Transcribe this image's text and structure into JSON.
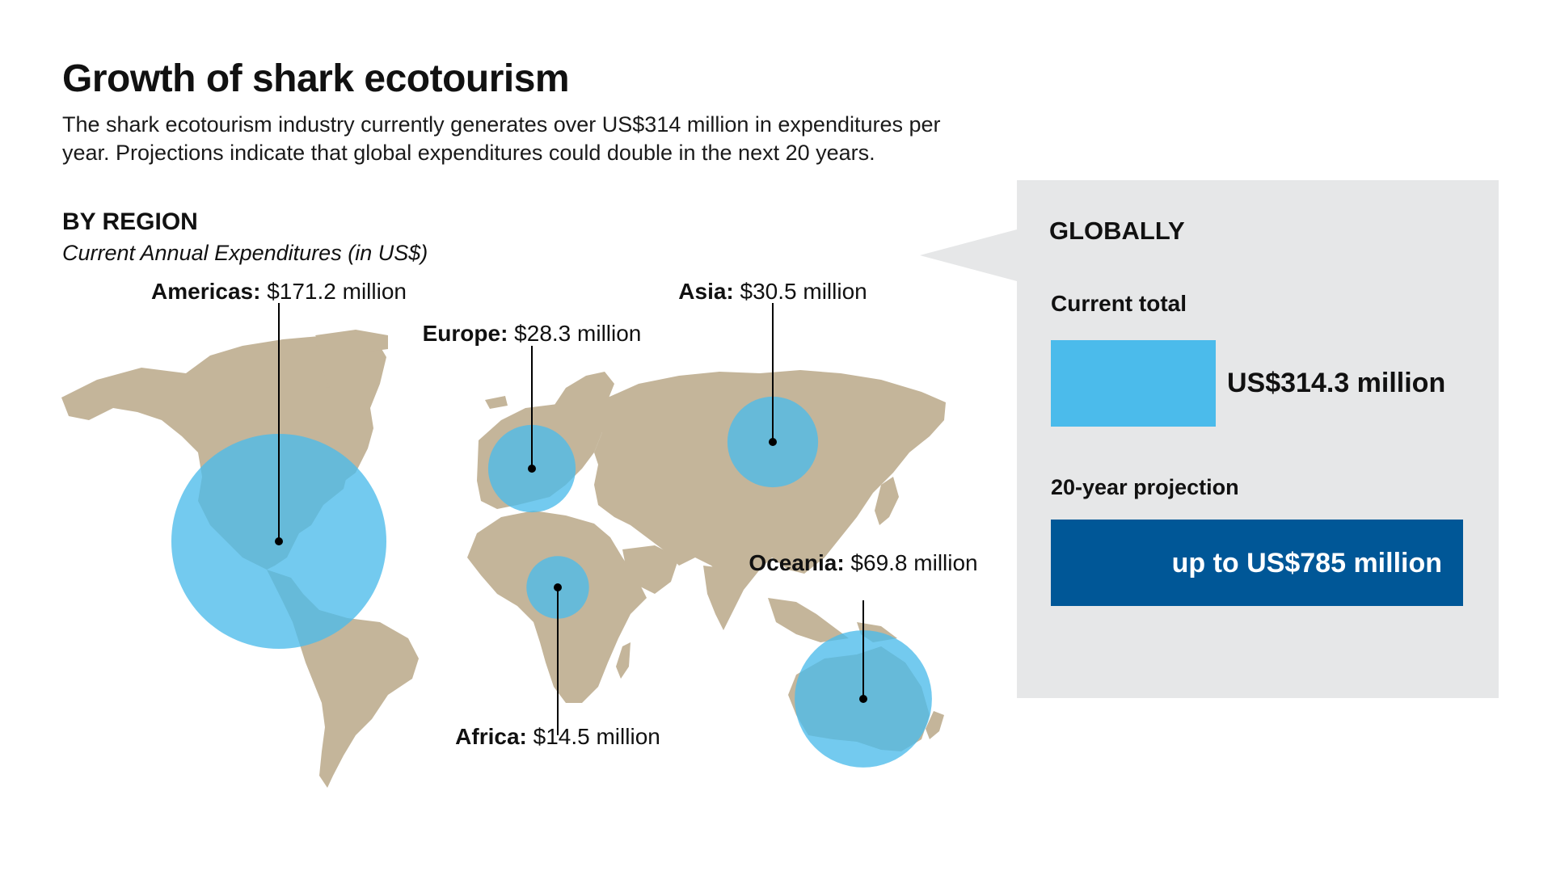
{
  "title": "Growth of shark ecotourism",
  "subtitle": "The shark ecotourism industry currently generates over US$314 million in expenditures per year. Projections indicate that global expenditures could double in the next 20 years.",
  "by_region": {
    "title": "BY REGION",
    "subtitle": "Current Annual Expenditures (in US$)"
  },
  "globally": {
    "title": "GLOBALLY",
    "current_label": "Current total",
    "current_value_text": "US$314.3 million",
    "projection_label": "20-year projection",
    "projection_value_text": "up to US$785 million"
  },
  "colors": {
    "bubble": "#4bbbeb",
    "current_bar": "#4bbbeb",
    "projection_bar": "#005797",
    "land": "#c4b59a",
    "panel": "#e6e7e8"
  },
  "chart_data": [
    {
      "type": "bubble-map",
      "unit": "US$ million",
      "regions": [
        {
          "name": "Americas",
          "value": 171.2,
          "value_text": "$171.2 million"
        },
        {
          "name": "Europe",
          "value": 28.3,
          "value_text": "$28.3 million"
        },
        {
          "name": "Asia",
          "value": 30.5,
          "value_text": "$30.5 million"
        },
        {
          "name": "Africa",
          "value": 14.5,
          "value_text": "$14.5 million"
        },
        {
          "name": "Oceania",
          "value": 69.8,
          "value_text": "$69.8 million"
        }
      ]
    },
    {
      "type": "bar",
      "categories": [
        "Current total",
        "20-year projection"
      ],
      "values": [
        314.3,
        785
      ],
      "unit": "US$ million"
    }
  ]
}
